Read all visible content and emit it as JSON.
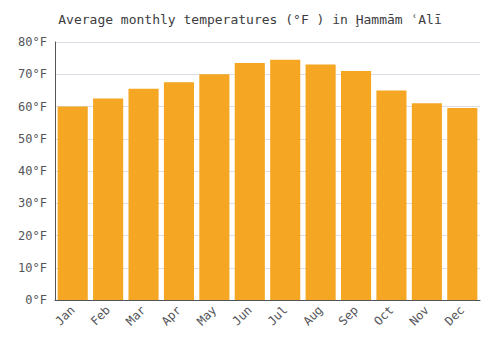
{
  "chart_data": {
    "type": "bar",
    "title": "Average monthly temperatures (°F ) in Ḩammām ʿAlī",
    "categories": [
      "Jan",
      "Feb",
      "Mar",
      "Apr",
      "May",
      "Jun",
      "Jul",
      "Aug",
      "Sep",
      "Oct",
      "Nov",
      "Dec"
    ],
    "values": [
      60,
      62.5,
      65.5,
      67.5,
      70,
      73.5,
      74.5,
      73,
      71,
      65,
      61,
      59.5
    ],
    "color": "#F5A623",
    "ylim": [
      0,
      80
    ],
    "yticks": [
      {
        "value": 0,
        "label": "0°F"
      },
      {
        "value": 10,
        "label": "10°F"
      },
      {
        "value": 20,
        "label": "20°F"
      },
      {
        "value": 30,
        "label": "30°F"
      },
      {
        "value": 40,
        "label": "40°F"
      },
      {
        "value": 50,
        "label": "50°F"
      },
      {
        "value": 60,
        "label": "60°F"
      },
      {
        "value": 70,
        "label": "70°F"
      },
      {
        "value": 80,
        "label": "80°F"
      }
    ],
    "grid": true
  }
}
